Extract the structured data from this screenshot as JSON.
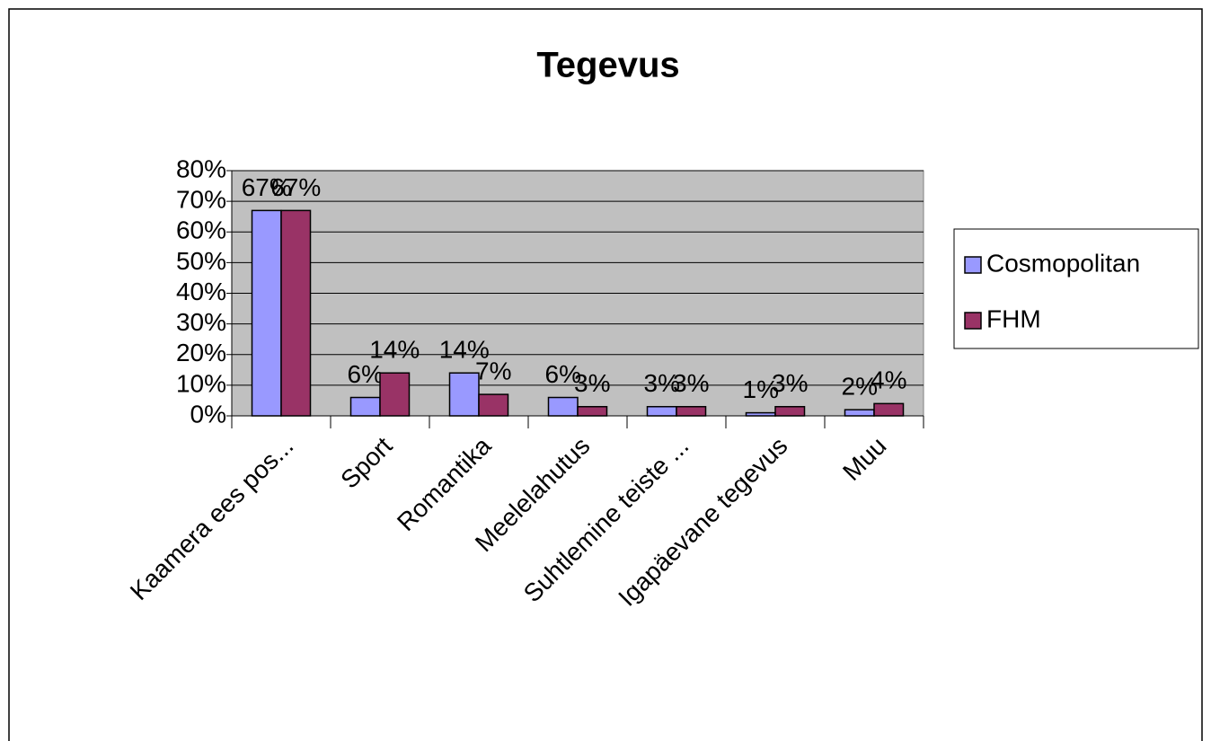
{
  "chart_data": {
    "type": "bar",
    "title": "Tegevus",
    "categories": [
      "Kaamera ees pos...",
      "Sport",
      "Romantika",
      "Meelelahutus",
      "Suhtlemine teiste ...",
      "Igapäevane tegevus",
      "Muu"
    ],
    "series": [
      {
        "name": "Cosmopolitan",
        "color": "#9999ff",
        "values": [
          67,
          6,
          14,
          6,
          3,
          1,
          2
        ],
        "value_labels": [
          "67%",
          "6%",
          "14%",
          "6%",
          "3%",
          "1%",
          "2%"
        ]
      },
      {
        "name": "FHM",
        "color": "#993366",
        "values": [
          67,
          14,
          7,
          3,
          3,
          3,
          4
        ],
        "value_labels": [
          "67%",
          "14%",
          "7%",
          "3%",
          "3%",
          "3%",
          "4%"
        ]
      }
    ],
    "ylim": [
      0,
      80
    ],
    "yticks": [
      {
        "value": 0,
        "label": "0%"
      },
      {
        "value": 10,
        "label": "10%"
      },
      {
        "value": 20,
        "label": "20%"
      },
      {
        "value": 30,
        "label": "30%"
      },
      {
        "value": 40,
        "label": "40%"
      },
      {
        "value": 50,
        "label": "50%"
      },
      {
        "value": 60,
        "label": "60%"
      },
      {
        "value": 70,
        "label": "70%"
      },
      {
        "value": 80,
        "label": "80%"
      }
    ],
    "grid": true,
    "legend": "right"
  }
}
